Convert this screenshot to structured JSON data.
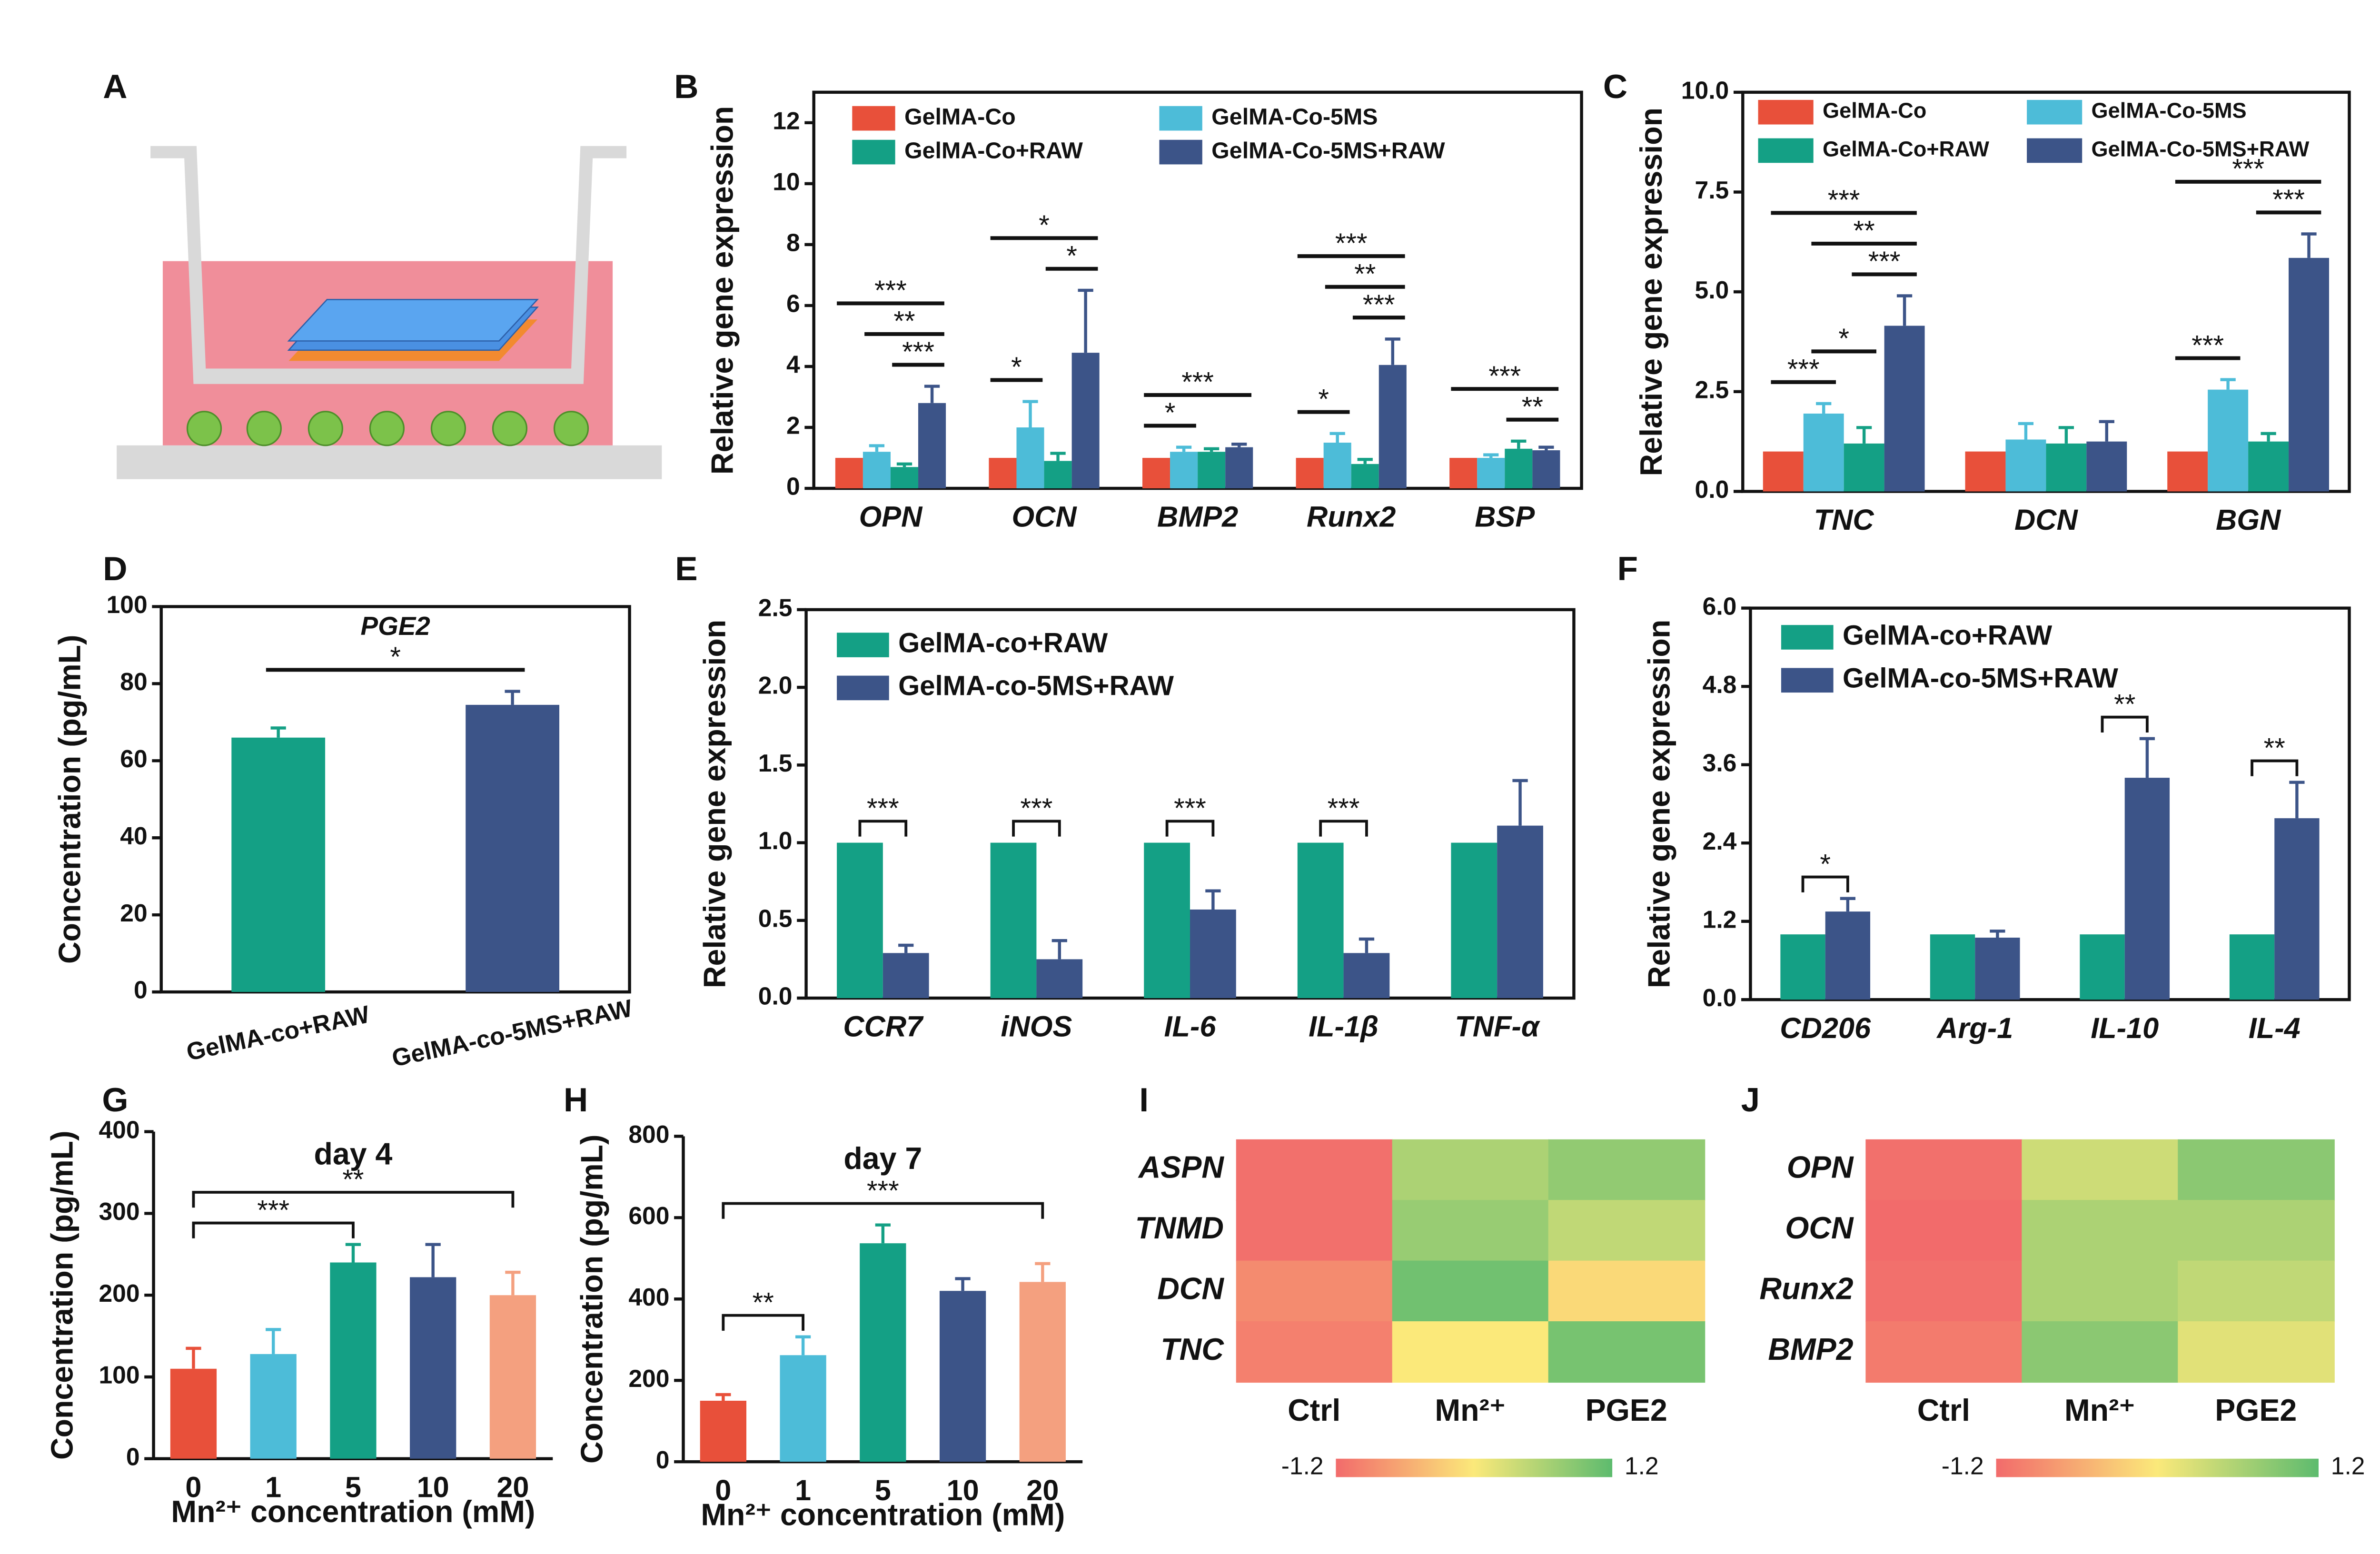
{
  "chart_data": [
    {
      "type": "diagram",
      "panel": "A"
    },
    {
      "type": "bar",
      "panel": "B",
      "ylabel": "Relative gene expression",
      "category_style": "italic",
      "categories": [
        "OPN",
        "OCN",
        "BMP2",
        "Runx2",
        "BSP"
      ],
      "series": [
        {
          "name": "GelMA-Co",
          "color": "#e8503a",
          "values": [
            1,
            1,
            1,
            1,
            1
          ]
        },
        {
          "name": "GelMA-Co-5MS",
          "color": "#4dbcd8",
          "values": [
            1.2,
            2.0,
            1.2,
            1.5,
            1.0
          ],
          "errors": [
            0.2,
            0.85,
            0.15,
            0.3,
            0.1
          ]
        },
        {
          "name": "GelMA-Co+RAW",
          "color": "#14a085",
          "values": [
            0.7,
            0.9,
            1.2,
            0.8,
            1.3
          ],
          "errors": [
            0.1,
            0.25,
            0.1,
            0.15,
            0.25
          ]
        },
        {
          "name": "GelMA-Co-5MS+RAW",
          "color": "#3c5488",
          "values": [
            2.8,
            4.45,
            1.35,
            4.05,
            1.25
          ],
          "errors": [
            0.55,
            2.05,
            0.1,
            0.85,
            0.1
          ]
        }
      ],
      "ylim": [
        0,
        13
      ],
      "yticks": [
        0,
        2,
        4,
        6,
        8,
        10,
        12
      ],
      "annotations": [
        {
          "text": "***",
          "category": 0,
          "span": [
            2,
            3
          ]
        },
        {
          "text": "**",
          "category": 0,
          "span": [
            1,
            3
          ]
        },
        {
          "text": "***",
          "category": 0,
          "span": [
            0,
            3
          ]
        },
        {
          "text": "*",
          "category": 1,
          "span": [
            0,
            1
          ]
        },
        {
          "text": "*",
          "category": 1,
          "span": [
            2,
            3
          ]
        },
        {
          "text": "*",
          "category": 1,
          "span": [
            0,
            3
          ]
        },
        {
          "text": "*",
          "category": 2,
          "span": [
            0,
            1
          ]
        },
        {
          "text": "***",
          "category": 2,
          "span": [
            0,
            3
          ]
        },
        {
          "text": "*",
          "category": 3,
          "span": [
            0,
            1
          ]
        },
        {
          "text": "***",
          "category": 3,
          "span": [
            2,
            3
          ]
        },
        {
          "text": "**",
          "category": 3,
          "span": [
            1,
            3
          ]
        },
        {
          "text": "***",
          "category": 3,
          "span": [
            0,
            3
          ]
        },
        {
          "text": "**",
          "category": 4,
          "span": [
            2,
            3
          ]
        },
        {
          "text": "***",
          "category": 4,
          "span": [
            0,
            3
          ]
        }
      ]
    },
    {
      "type": "bar",
      "panel": "C",
      "ylabel": "Relative gene expression",
      "category_style": "italic",
      "categories": [
        "TNC",
        "DCN",
        "BGN"
      ],
      "series": [
        {
          "name": "GelMA-Co",
          "color": "#e8503a",
          "values": [
            1,
            1,
            1
          ]
        },
        {
          "name": "GelMA-Co-5MS",
          "color": "#4dbcd8",
          "values": [
            1.95,
            1.3,
            2.55
          ],
          "errors": [
            0.25,
            0.4,
            0.25
          ]
        },
        {
          "name": "GelMA-Co+RAW",
          "color": "#14a085",
          "values": [
            1.2,
            1.2,
            1.25
          ],
          "errors": [
            0.4,
            0.4,
            0.2
          ]
        },
        {
          "name": "GelMA-Co-5MS+RAW",
          "color": "#3c5488",
          "values": [
            4.15,
            1.25,
            5.85
          ],
          "errors": [
            0.75,
            0.5,
            0.6
          ]
        }
      ],
      "ylim": [
        0,
        10
      ],
      "yticks": [
        {
          "value": 0,
          "label": "0.0"
        },
        2.5,
        {
          "value": 5,
          "label": "5.0"
        },
        7.5,
        {
          "value": 10,
          "label": "10.0"
        }
      ],
      "annotations": [
        {
          "text": "***",
          "category": 0,
          "span": [
            0,
            1
          ]
        },
        {
          "text": "*",
          "category": 0,
          "span": [
            1,
            2
          ]
        },
        {
          "text": "***",
          "category": 0,
          "span": [
            2,
            3
          ]
        },
        {
          "text": "**",
          "category": 0,
          "span": [
            1,
            3
          ]
        },
        {
          "text": "***",
          "category": 0,
          "span": [
            0,
            3
          ]
        },
        {
          "text": "***",
          "category": 2,
          "span": [
            0,
            1
          ]
        },
        {
          "text": "***",
          "category": 2,
          "span": [
            2,
            3
          ]
        },
        {
          "text": "***",
          "category": 2,
          "span": [
            0,
            3
          ]
        }
      ]
    },
    {
      "type": "bar",
      "panel": "D",
      "ylabel": "Concentration (pg/mL)",
      "title": "PGE2",
      "categories": [
        "GelMA-co+RAW",
        "GelMA-co-5MS+RAW"
      ],
      "values": [
        66,
        74.5
      ],
      "errors": [
        2.5,
        3.5
      ],
      "colors": [
        "#14a085",
        "#3c5488"
      ],
      "ylim": [
        0,
        100
      ],
      "yticks": [
        0,
        20,
        40,
        60,
        80,
        100
      ],
      "annotations": [
        {
          "text": "*",
          "span": [
            0,
            1
          ]
        }
      ]
    },
    {
      "type": "bar",
      "panel": "E",
      "ylabel": "Relative gene expression",
      "category_style": "italic",
      "categories": [
        "CCR7",
        "iNOS",
        "IL-6",
        "IL-1β",
        "TNF-α"
      ],
      "series": [
        {
          "name": "GelMA-co+RAW",
          "color": "#14a085",
          "values": [
            1,
            1,
            1,
            1,
            1
          ]
        },
        {
          "name": "GelMA-co-5MS+RAW",
          "color": "#3c5488",
          "values": [
            0.29,
            0.25,
            0.57,
            0.29,
            1.11
          ],
          "errors": [
            0.05,
            0.12,
            0.12,
            0.09,
            0.29
          ]
        }
      ],
      "ylim": [
        0,
        2.5
      ],
      "yticks": [
        {
          "value": 0,
          "label": "0.0"
        },
        0.5,
        {
          "value": 1,
          "label": "1.0"
        },
        1.5,
        {
          "value": 2,
          "label": "2.0"
        },
        2.5
      ],
      "annotations": [
        {
          "text": "***",
          "category": 0,
          "span": [
            0,
            1
          ]
        },
        {
          "text": "***",
          "category": 1,
          "span": [
            0,
            1
          ]
        },
        {
          "text": "***",
          "category": 2,
          "span": [
            0,
            1
          ]
        },
        {
          "text": "***",
          "category": 3,
          "span": [
            0,
            1
          ]
        }
      ]
    },
    {
      "type": "bar",
      "panel": "F",
      "ylabel": "Relative gene expression",
      "category_style": "italic",
      "categories": [
        "CD206",
        "Arg-1",
        "IL-10",
        "IL-4"
      ],
      "series": [
        {
          "name": "GelMA-co+RAW",
          "color": "#14a085",
          "values": [
            1,
            1,
            1,
            1
          ]
        },
        {
          "name": "GelMA-co-5MS+RAW",
          "color": "#3c5488",
          "values": [
            1.35,
            0.95,
            3.4,
            2.78
          ],
          "errors": [
            0.2,
            0.1,
            0.6,
            0.55
          ]
        }
      ],
      "ylim": [
        0,
        6
      ],
      "yticks": [
        {
          "value": 0,
          "label": "0.0"
        },
        1.2,
        2.4,
        3.6,
        4.8,
        {
          "value": 6,
          "label": "6.0"
        }
      ],
      "annotations": [
        {
          "text": "*",
          "category": 0,
          "span": [
            0,
            1
          ]
        },
        {
          "text": "**",
          "category": 2,
          "span": [
            0,
            1
          ]
        },
        {
          "text": "**",
          "category": 3,
          "span": [
            0,
            1
          ]
        }
      ]
    },
    {
      "type": "bar",
      "panel": "G",
      "ylabel": "Concentration (pg/mL)",
      "xlabel": "Mn²⁺ concentration (mM)",
      "title": "day 4",
      "categories": [
        "0",
        "1",
        "5",
        "10",
        "20"
      ],
      "values": [
        110,
        128,
        240,
        222,
        200
      ],
      "errors": [
        25,
        30,
        22,
        40,
        28
      ],
      "colors": [
        "#e8503a",
        "#4dbcd8",
        "#14a085",
        "#3c5488",
        "#f4a07f"
      ],
      "ylim": [
        0,
        400
      ],
      "yticks": [
        0,
        100,
        200,
        300,
        400
      ],
      "annotations": [
        {
          "text": "***",
          "span": [
            0,
            2
          ]
        },
        {
          "text": "**",
          "span": [
            0,
            4
          ]
        }
      ]
    },
    {
      "type": "bar",
      "panel": "H",
      "ylabel": "Concentration (pg/mL)",
      "xlabel": "Mn²⁺ concentration (mM)",
      "title": "day 7",
      "categories": [
        "0",
        "1",
        "5",
        "10",
        "20"
      ],
      "values": [
        150,
        262,
        537,
        420,
        442
      ],
      "errors": [
        15,
        45,
        45,
        30,
        45
      ],
      "colors": [
        "#e8503a",
        "#4dbcd8",
        "#14a085",
        "#3c5488",
        "#f4a07f"
      ],
      "ylim": [
        0,
        800
      ],
      "yticks": [
        0,
        200,
        400,
        600,
        800
      ],
      "annotations": [
        {
          "text": "**",
          "span": [
            0,
            1
          ]
        },
        {
          "text": "***",
          "span": [
            0,
            4
          ]
        }
      ]
    },
    {
      "type": "heatmap",
      "panel": "I",
      "rows": [
        "ASPN",
        "TNMD",
        "DCN",
        "TNC"
      ],
      "columns": [
        "Ctrl",
        "Mn²⁺",
        "PGE2"
      ],
      "values": [
        [
          -1.15,
          0.6,
          0.8
        ],
        [
          -1.15,
          0.75,
          0.45
        ],
        [
          -0.9,
          1.05,
          -0.15
        ],
        [
          -1.0,
          0.0,
          1.0
        ]
      ],
      "clim": [
        -1.2,
        1.2
      ],
      "cticks": [
        -1.2,
        1.2
      ],
      "colors": [
        "#f26b6b",
        "#fbe97a",
        "#5dbb6e"
      ]
    },
    {
      "type": "heatmap",
      "panel": "J",
      "rows": [
        "OPN",
        "OCN",
        "Runx2",
        "BMP2"
      ],
      "columns": [
        "Ctrl",
        "Mn²⁺",
        "PGE2"
      ],
      "values": [
        [
          -1.15,
          0.35,
          0.85
        ],
        [
          -1.2,
          0.6,
          0.6
        ],
        [
          -1.15,
          0.6,
          0.45
        ],
        [
          -1.05,
          0.85,
          0.2
        ]
      ],
      "clim": [
        -1.2,
        1.2
      ],
      "cticks": [
        -1.2,
        1.2
      ],
      "colors": [
        "#f26b6b",
        "#fbe97a",
        "#5dbb6e"
      ]
    }
  ]
}
